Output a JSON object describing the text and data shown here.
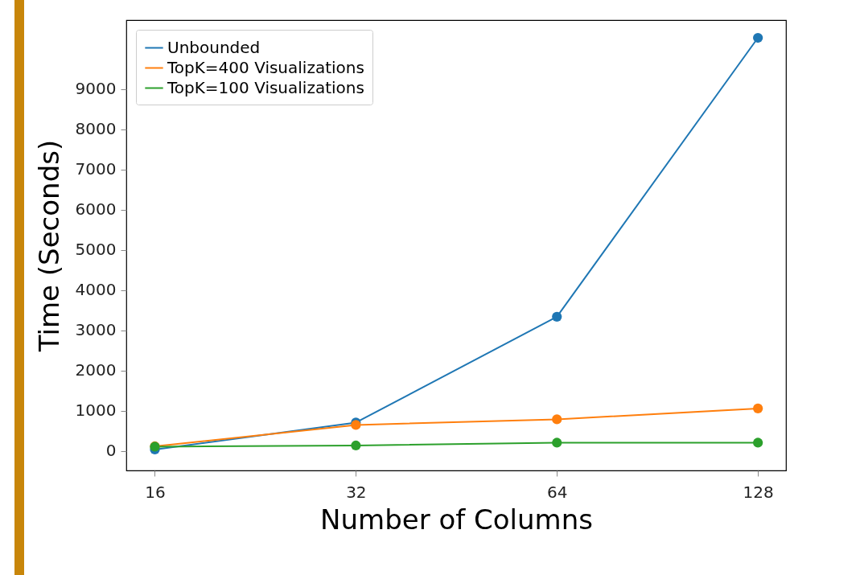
{
  "chart_data": {
    "type": "line",
    "xlabel": "Number of Columns",
    "ylabel": "Time (Seconds)",
    "x": [
      16,
      32,
      64,
      128
    ],
    "log": "x",
    "xlim": [
      14.5,
      141
    ],
    "xticks": [
      16,
      32,
      64,
      128
    ],
    "ylim": [
      -480,
      10710
    ],
    "yticks": [
      0,
      1000,
      2000,
      3000,
      4000,
      5000,
      6000,
      7000,
      8000,
      9000
    ],
    "grid": false,
    "legend": "top left",
    "marker": "circle",
    "line_style": "solid",
    "series": [
      {
        "name": "Unbounded",
        "color": "#1f77b4",
        "values": [
          40,
          710,
          3340,
          10270
        ]
      },
      {
        "name": "TopK=400 Visualizations",
        "color": "#ff7f0e",
        "values": [
          120,
          650,
          790,
          1060
        ]
      },
      {
        "name": "TopK=100 Visualizations",
        "color": "#2ca02c",
        "values": [
          110,
          140,
          210,
          210
        ]
      }
    ]
  }
}
